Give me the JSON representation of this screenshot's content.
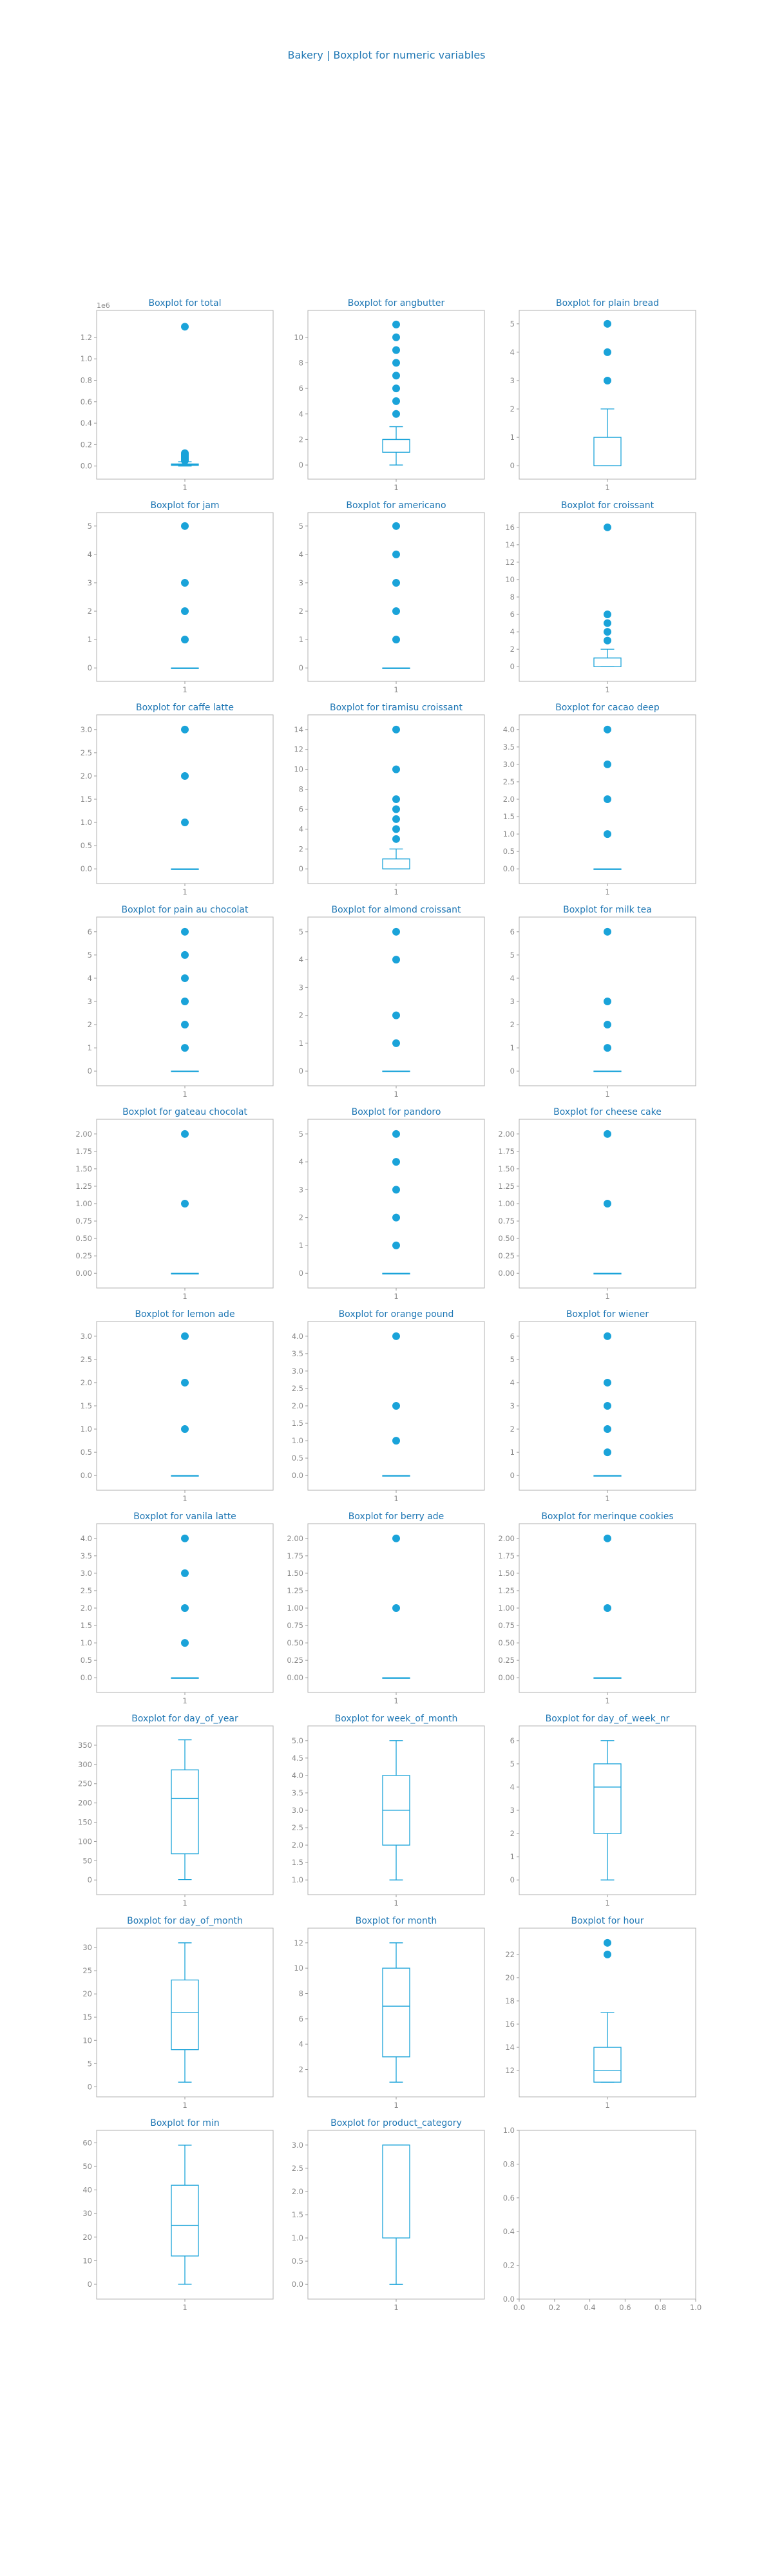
{
  "figure": {
    "title": "Bakery | Boxplot for numeric variables",
    "colors": {
      "accent": "#1aa3d9",
      "title": "#1f77b4",
      "axis": "#9a9a9a",
      "tick_text": "#8a8a8a",
      "frame": "#b0b0b0"
    }
  },
  "chart_data": [
    {
      "type": "box",
      "title": "Boxplot for total",
      "xtick": "1",
      "ylim": [
        -0.05,
        1.38
      ],
      "yticks": [
        0.0,
        0.2,
        0.4,
        0.6,
        0.8,
        1.0,
        1.2
      ],
      "tick_labels": [
        "0.0",
        "0.2",
        "0.4",
        "0.6",
        "0.8",
        "1.0",
        "1.2"
      ],
      "offset": "1e6",
      "q1": 0.006,
      "median": 0.012,
      "q3": 0.02,
      "whisker_low": 0.0,
      "whisker_high": 0.04,
      "fliers": [
        0.05,
        0.06,
        0.07,
        0.08,
        0.09,
        0.1,
        0.11,
        0.12,
        1.3
      ]
    },
    {
      "type": "box",
      "title": "Boxplot for angbutter",
      "xtick": "1",
      "ylim": [
        -0.5,
        11.5
      ],
      "yticks": [
        0,
        2,
        4,
        6,
        8,
        10
      ],
      "q1": 1,
      "median": 2,
      "q3": 2,
      "whisker_low": 0,
      "whisker_high": 3,
      "fliers": [
        4,
        5,
        6,
        7,
        8,
        9,
        10,
        11
      ]
    },
    {
      "type": "box",
      "title": "Boxplot for plain bread",
      "xtick": "1",
      "ylim": [
        -0.2,
        5.2
      ],
      "yticks": [
        0,
        1,
        2,
        3,
        4,
        5
      ],
      "q1": 0,
      "median": 0,
      "q3": 1,
      "whisker_low": 0,
      "whisker_high": 2,
      "fliers": [
        3,
        4,
        5
      ]
    },
    {
      "type": "box",
      "title": "Boxplot for jam",
      "xtick": "1",
      "ylim": [
        -0.2,
        5.2
      ],
      "yticks": [
        0,
        1,
        2,
        3,
        4,
        5
      ],
      "q1": 0,
      "median": 0,
      "q3": 0,
      "whisker_low": 0,
      "whisker_high": 0,
      "fliers": [
        1,
        2,
        3,
        5
      ]
    },
    {
      "type": "box",
      "title": "Boxplot for americano",
      "xtick": "1",
      "ylim": [
        -0.2,
        5.2
      ],
      "yticks": [
        0,
        1,
        2,
        3,
        4,
        5
      ],
      "q1": 0,
      "median": 0,
      "q3": 0,
      "whisker_low": 0,
      "whisker_high": 0,
      "fliers": [
        1,
        2,
        3,
        4,
        5
      ]
    },
    {
      "type": "box",
      "title": "Boxplot for croissant",
      "xtick": "1",
      "ylim": [
        -0.8,
        16.8
      ],
      "yticks": [
        0,
        2,
        4,
        6,
        8,
        10,
        12,
        14,
        16
      ],
      "q1": 0,
      "median": 1,
      "q3": 1,
      "whisker_low": 0,
      "whisker_high": 2,
      "fliers": [
        3,
        4,
        5,
        6,
        16
      ]
    },
    {
      "type": "box",
      "title": "Boxplot for caffe latte",
      "xtick": "1",
      "ylim": [
        -0.15,
        3.15
      ],
      "yticks": [
        0.0,
        0.5,
        1.0,
        1.5,
        2.0,
        2.5,
        3.0
      ],
      "tick_labels": [
        "0.0",
        "0.5",
        "1.0",
        "1.5",
        "2.0",
        "2.5",
        "3.0"
      ],
      "q1": 0,
      "median": 0,
      "q3": 0,
      "whisker_low": 0,
      "whisker_high": 0,
      "fliers": [
        1,
        2,
        3
      ]
    },
    {
      "type": "box",
      "title": "Boxplot for tiramisu croissant",
      "xtick": "1",
      "ylim": [
        -0.7,
        14.7
      ],
      "yticks": [
        0,
        2,
        4,
        6,
        8,
        10,
        12,
        14
      ],
      "q1": 0,
      "median": 0,
      "q3": 1,
      "whisker_low": 0,
      "whisker_high": 2,
      "fliers": [
        3,
        4,
        5,
        6,
        7,
        10,
        14
      ]
    },
    {
      "type": "box",
      "title": "Boxplot for cacao deep",
      "xtick": "1",
      "ylim": [
        -0.2,
        4.2
      ],
      "yticks": [
        0.0,
        0.5,
        1.0,
        1.5,
        2.0,
        2.5,
        3.0,
        3.5,
        4.0
      ],
      "tick_labels": [
        "0.0",
        "0.5",
        "1.0",
        "1.5",
        "2.0",
        "2.5",
        "3.0",
        "3.5",
        "4.0"
      ],
      "q1": 0,
      "median": 0,
      "q3": 0,
      "whisker_low": 0,
      "whisker_high": 0,
      "fliers": [
        1,
        2,
        3,
        4
      ]
    },
    {
      "type": "box",
      "title": "Boxplot for pain au chocolat",
      "xtick": "1",
      "ylim": [
        -0.3,
        6.3
      ],
      "yticks": [
        0,
        1,
        2,
        3,
        4,
        5,
        6
      ],
      "q1": 0,
      "median": 0,
      "q3": 0,
      "whisker_low": 0,
      "whisker_high": 0,
      "fliers": [
        1,
        2,
        3,
        4,
        5,
        6
      ]
    },
    {
      "type": "box",
      "title": "Boxplot for almond croissant",
      "xtick": "1",
      "ylim": [
        -0.25,
        5.25
      ],
      "yticks": [
        0,
        1,
        2,
        3,
        4,
        5
      ],
      "q1": 0,
      "median": 0,
      "q3": 0,
      "whisker_low": 0,
      "whisker_high": 0,
      "fliers": [
        1,
        2,
        4,
        5
      ]
    },
    {
      "type": "box",
      "title": "Boxplot for milk tea",
      "xtick": "1",
      "ylim": [
        -0.3,
        6.3
      ],
      "yticks": [
        0,
        1,
        2,
        3,
        4,
        5,
        6
      ],
      "q1": 0,
      "median": 0,
      "q3": 0,
      "whisker_low": 0,
      "whisker_high": 0,
      "fliers": [
        1,
        2,
        3,
        6
      ]
    },
    {
      "type": "box",
      "title": "Boxplot for gateau chocolat",
      "xtick": "1",
      "ylim": [
        -0.1,
        2.1
      ],
      "yticks": [
        0.0,
        0.25,
        0.5,
        0.75,
        1.0,
        1.25,
        1.5,
        1.75,
        2.0
      ],
      "tick_labels": [
        "0.00",
        "0.25",
        "0.50",
        "0.75",
        "1.00",
        "1.25",
        "1.50",
        "1.75",
        "2.00"
      ],
      "q1": 0,
      "median": 0,
      "q3": 0,
      "whisker_low": 0,
      "whisker_high": 0,
      "fliers": [
        1,
        2
      ]
    },
    {
      "type": "box",
      "title": "Boxplot for pandoro",
      "xtick": "1",
      "ylim": [
        -0.25,
        5.25
      ],
      "yticks": [
        0,
        1,
        2,
        3,
        4,
        5
      ],
      "q1": 0,
      "median": 0,
      "q3": 0,
      "whisker_low": 0,
      "whisker_high": 0,
      "fliers": [
        1,
        2,
        3,
        4,
        5
      ]
    },
    {
      "type": "box",
      "title": "Boxplot for cheese cake",
      "xtick": "1",
      "ylim": [
        -0.1,
        2.1
      ],
      "yticks": [
        0.0,
        0.25,
        0.5,
        0.75,
        1.0,
        1.25,
        1.5,
        1.75,
        2.0
      ],
      "tick_labels": [
        "0.00",
        "0.25",
        "0.50",
        "0.75",
        "1.00",
        "1.25",
        "1.50",
        "1.75",
        "2.00"
      ],
      "q1": 0,
      "median": 0,
      "q3": 0,
      "whisker_low": 0,
      "whisker_high": 0,
      "fliers": [
        1,
        2
      ]
    },
    {
      "type": "box",
      "title": "Boxplot for lemon ade",
      "xtick": "1",
      "ylim": [
        -0.15,
        3.15
      ],
      "yticks": [
        0.0,
        0.5,
        1.0,
        1.5,
        2.0,
        2.5,
        3.0
      ],
      "tick_labels": [
        "0.0",
        "0.5",
        "1.0",
        "1.5",
        "2.0",
        "2.5",
        "3.0"
      ],
      "q1": 0,
      "median": 0,
      "q3": 0,
      "whisker_low": 0,
      "whisker_high": 0,
      "fliers": [
        1,
        2,
        3
      ]
    },
    {
      "type": "box",
      "title": "Boxplot for orange pound",
      "xtick": "1",
      "ylim": [
        -0.2,
        4.2
      ],
      "yticks": [
        0.0,
        0.5,
        1.0,
        1.5,
        2.0,
        2.5,
        3.0,
        3.5,
        4.0
      ],
      "tick_labels": [
        "0.0",
        "0.5",
        "1.0",
        "1.5",
        "2.0",
        "2.5",
        "3.0",
        "3.5",
        "4.0"
      ],
      "q1": 0,
      "median": 0,
      "q3": 0,
      "whisker_low": 0,
      "whisker_high": 0,
      "fliers": [
        1,
        2,
        4
      ]
    },
    {
      "type": "box",
      "title": "Boxplot for wiener",
      "xtick": "1",
      "ylim": [
        -0.3,
        6.3
      ],
      "yticks": [
        0,
        1,
        2,
        3,
        4,
        5,
        6
      ],
      "q1": 0,
      "median": 0,
      "q3": 0,
      "whisker_low": 0,
      "whisker_high": 0,
      "fliers": [
        1,
        2,
        3,
        4,
        6
      ]
    },
    {
      "type": "box",
      "title": "Boxplot for vanila latte",
      "xtick": "1",
      "ylim": [
        -0.2,
        4.2
      ],
      "yticks": [
        0.0,
        0.5,
        1.0,
        1.5,
        2.0,
        2.5,
        3.0,
        3.5,
        4.0
      ],
      "tick_labels": [
        "0.0",
        "0.5",
        "1.0",
        "1.5",
        "2.0",
        "2.5",
        "3.0",
        "3.5",
        "4.0"
      ],
      "q1": 0,
      "median": 0,
      "q3": 0,
      "whisker_low": 0,
      "whisker_high": 0,
      "fliers": [
        1,
        2,
        3,
        4
      ]
    },
    {
      "type": "box",
      "title": "Boxplot for berry ade",
      "xtick": "1",
      "ylim": [
        -0.1,
        2.1
      ],
      "yticks": [
        0.0,
        0.25,
        0.5,
        0.75,
        1.0,
        1.25,
        1.5,
        1.75,
        2.0
      ],
      "tick_labels": [
        "0.00",
        "0.25",
        "0.50",
        "0.75",
        "1.00",
        "1.25",
        "1.50",
        "1.75",
        "2.00"
      ],
      "q1": 0,
      "median": 0,
      "q3": 0,
      "whisker_low": 0,
      "whisker_high": 0,
      "fliers": [
        1,
        2
      ]
    },
    {
      "type": "box",
      "title": "Boxplot for merinque cookies",
      "xtick": "1",
      "ylim": [
        -0.1,
        2.1
      ],
      "yticks": [
        0.0,
        0.25,
        0.5,
        0.75,
        1.0,
        1.25,
        1.5,
        1.75,
        2.0
      ],
      "tick_labels": [
        "0.00",
        "0.25",
        "0.50",
        "0.75",
        "1.00",
        "1.25",
        "1.50",
        "1.75",
        "2.00"
      ],
      "q1": 0,
      "median": 0,
      "q3": 0,
      "whisker_low": 0,
      "whisker_high": 0,
      "fliers": [
        1,
        2
      ]
    },
    {
      "type": "box",
      "title": "Boxplot for day_of_year",
      "xtick": "1",
      "ylim": [
        -18,
        380
      ],
      "yticks": [
        0,
        50,
        100,
        150,
        200,
        250,
        300,
        350
      ],
      "q1": 68,
      "median": 212,
      "q3": 286,
      "whisker_low": 1,
      "whisker_high": 364,
      "fliers": []
    },
    {
      "type": "box",
      "title": "Boxplot for week_of_month",
      "xtick": "1",
      "ylim": [
        0.8,
        5.2
      ],
      "yticks": [
        1.0,
        1.5,
        2.0,
        2.5,
        3.0,
        3.5,
        4.0,
        4.5,
        5.0
      ],
      "tick_labels": [
        "1.0",
        "1.5",
        "2.0",
        "2.5",
        "3.0",
        "3.5",
        "4.0",
        "4.5",
        "5.0"
      ],
      "q1": 2,
      "median": 3,
      "q3": 4,
      "whisker_low": 1,
      "whisker_high": 5,
      "fliers": []
    },
    {
      "type": "box",
      "title": "Boxplot for day_of_week_nr",
      "xtick": "1",
      "ylim": [
        -0.3,
        6.3
      ],
      "yticks": [
        0,
        1,
        2,
        3,
        4,
        5,
        6
      ],
      "q1": 2,
      "median": 4,
      "q3": 5,
      "whisker_low": 0,
      "whisker_high": 6,
      "fliers": []
    },
    {
      "type": "box",
      "title": "Boxplot for day_of_month",
      "xtick": "1",
      "ylim": [
        -0.5,
        32.5
      ],
      "yticks": [
        0,
        5,
        10,
        15,
        20,
        25,
        30
      ],
      "q1": 8,
      "median": 16,
      "q3": 23,
      "whisker_low": 1,
      "whisker_high": 31,
      "fliers": []
    },
    {
      "type": "box",
      "title": "Boxplot for month",
      "xtick": "1",
      "ylim": [
        0.45,
        12.55
      ],
      "yticks": [
        2,
        4,
        6,
        8,
        10,
        12
      ],
      "q1": 3,
      "median": 7,
      "q3": 10,
      "whisker_low": 1,
      "whisker_high": 12,
      "fliers": []
    },
    {
      "type": "box",
      "title": "Boxplot for hour",
      "xtick": "1",
      "ylim": [
        10.4,
        23.6
      ],
      "yticks": [
        12,
        14,
        16,
        18,
        20,
        22
      ],
      "q1": 11,
      "median": 12,
      "q3": 14,
      "whisker_low": 11,
      "whisker_high": 17,
      "fliers": [
        22,
        23
      ]
    },
    {
      "type": "box",
      "title": "Boxplot for min",
      "xtick": "1",
      "ylim": [
        -3,
        62
      ],
      "yticks": [
        0,
        10,
        20,
        30,
        40,
        50,
        60
      ],
      "q1": 12,
      "median": 25,
      "q3": 42,
      "whisker_low": 0,
      "whisker_high": 59,
      "fliers": []
    },
    {
      "type": "box",
      "title": "Boxplot for product_category",
      "xtick": "1",
      "ylim": [
        -0.15,
        3.15
      ],
      "yticks": [
        0.0,
        0.5,
        1.0,
        1.5,
        2.0,
        2.5,
        3.0
      ],
      "tick_labels": [
        "0.0",
        "0.5",
        "1.0",
        "1.5",
        "2.0",
        "2.5",
        "3.0"
      ],
      "q1": 1,
      "median": 3,
      "q3": 3,
      "whisker_low": 0,
      "whisker_high": 3,
      "fliers": []
    },
    {
      "type": "empty",
      "title": "",
      "xlim": [
        0,
        1
      ],
      "ylim": [
        0,
        1
      ],
      "xticks": [
        0.0,
        0.2,
        0.4,
        0.6,
        0.8,
        1.0
      ],
      "yticks": [
        0.0,
        0.2,
        0.4,
        0.6,
        0.8,
        1.0
      ],
      "tick_labels": [
        "0.0",
        "0.2",
        "0.4",
        "0.6",
        "0.8",
        "1.0"
      ]
    }
  ]
}
